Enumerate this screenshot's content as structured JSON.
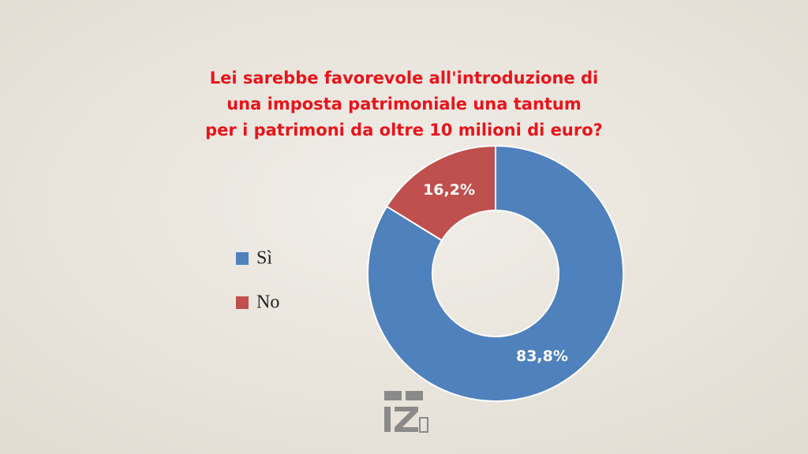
{
  "chart_data": {
    "type": "donut",
    "title": [
      "Lei sarebbe favorevole all'introduzione di",
      "una imposta patrimoniale una tantum",
      "per i patrimoni da oltre 10 milioni di euro?"
    ],
    "categories": [
      "Sì",
      "No"
    ],
    "values": [
      83.8,
      16.2
    ],
    "value_labels": [
      "83,8%",
      "16,2%"
    ],
    "colors": [
      "#4f81bd",
      "#c0504d"
    ],
    "legend": "left"
  }
}
